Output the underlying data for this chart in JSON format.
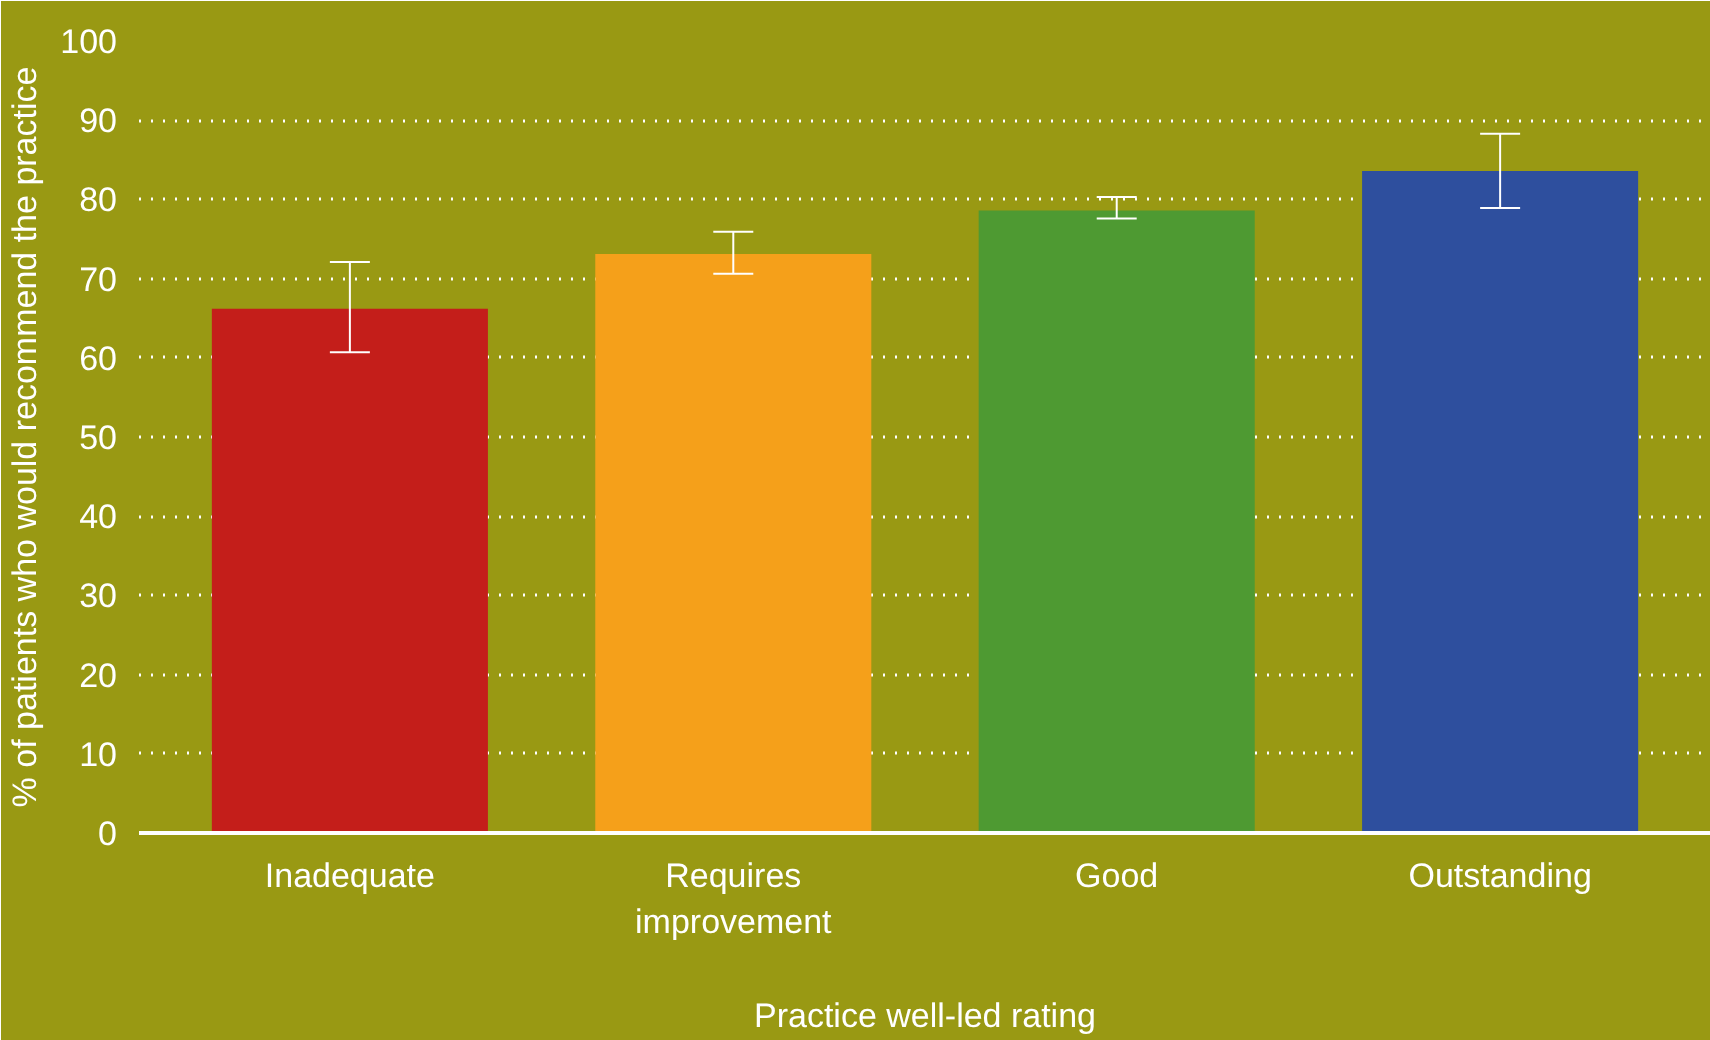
{
  "chart_data": {
    "type": "bar",
    "xlabel": "Practice well-led rating",
    "ylabel": "% of patients who would recommend the practice",
    "categories": [
      "Inadequate",
      "Requires improvement",
      "Good",
      "Outstanding"
    ],
    "values": [
      66.2,
      73.1,
      78.6,
      83.6
    ],
    "colors": [
      "#c41e1a",
      "#f5a01a",
      "#4e9a32",
      "#2e4f9e"
    ],
    "errors": [
      [
        60.7,
        72.1
      ],
      [
        70.6,
        75.9
      ],
      [
        77.6,
        80.3
      ],
      [
        78.9,
        88.3
      ]
    ],
    "ylim": [
      0,
      100
    ],
    "yticks": [
      0,
      10,
      20,
      30,
      40,
      50,
      60,
      70,
      80,
      90,
      100
    ],
    "grid": "y"
  }
}
